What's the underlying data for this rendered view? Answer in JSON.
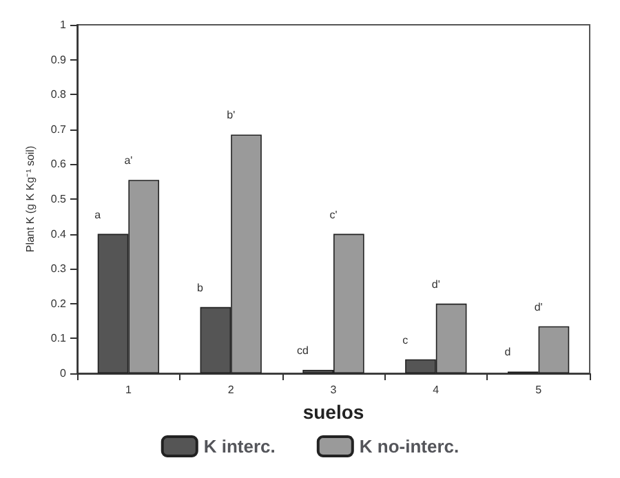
{
  "chart_data": {
    "type": "bar",
    "xlabel": "suelos",
    "ylabel": "Plant K (g K Kg⁻¹ soil)",
    "categories": [
      "1",
      "2",
      "3",
      "4",
      "5"
    ],
    "series": [
      {
        "name": "K interc.",
        "color": "#555555",
        "values": [
          0.4,
          0.19,
          0.01,
          0.04,
          0.005
        ]
      },
      {
        "name": "K no-interc.",
        "color": "#9a9a9a",
        "values": [
          0.555,
          0.685,
          0.4,
          0.2,
          0.135
        ]
      }
    ],
    "ylim": [
      0,
      1
    ],
    "yticks": [
      0,
      0.1,
      0.2,
      0.3,
      0.4,
      0.5,
      0.6,
      0.7,
      0.8,
      0.9,
      1
    ],
    "annotations": [
      {
        "text": "a",
        "x": "1",
        "y": 0.4
      },
      {
        "text": "a'",
        "x": "1",
        "y": 0.555
      },
      {
        "text": "b",
        "x": "2",
        "y": 0.19
      },
      {
        "text": "b'",
        "x": "2",
        "y": 0.685
      },
      {
        "text": "cd",
        "x": "3",
        "y": 0.01
      },
      {
        "text": "c'",
        "x": "3",
        "y": 0.4
      },
      {
        "text": "c",
        "x": "4",
        "y": 0.04
      },
      {
        "text": "d'",
        "x": "4",
        "y": 0.2
      },
      {
        "text": "d",
        "x": "5",
        "y": 0.005
      },
      {
        "text": "d'",
        "x": "5",
        "y": 0.135
      }
    ],
    "grid": false,
    "legend": "bottom"
  }
}
